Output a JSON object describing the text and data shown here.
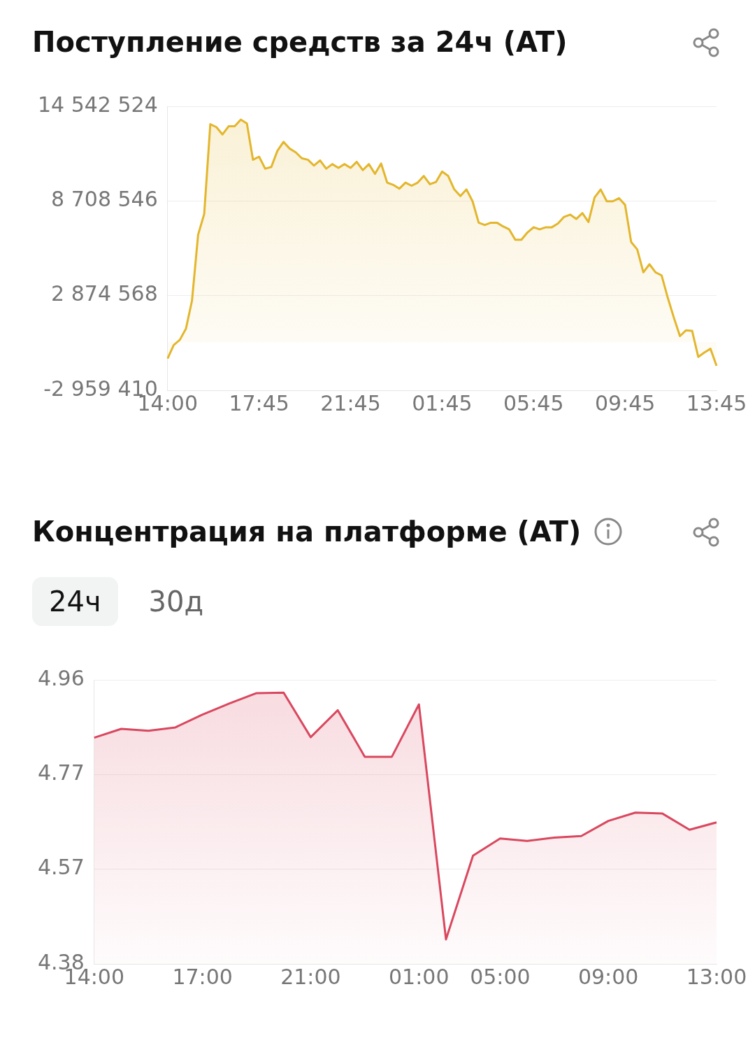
{
  "chart_data": [
    {
      "type": "area",
      "title": "Поступление средств за 24ч (AT)",
      "color": "#e3b62c",
      "grid": "y",
      "marker": "none",
      "line_style": "solid",
      "categories": [
        "14:00",
        null,
        null,
        null,
        null,
        null,
        null,
        null,
        null,
        null,
        null,
        null,
        null,
        null,
        null,
        "17:45",
        null,
        null,
        null,
        null,
        null,
        null,
        null,
        null,
        null,
        null,
        null,
        null,
        null,
        null,
        "21:45",
        null,
        null,
        null,
        null,
        null,
        null,
        null,
        null,
        null,
        null,
        null,
        null,
        null,
        null,
        "01:45",
        null,
        null,
        null,
        null,
        null,
        null,
        null,
        null,
        null,
        null,
        null,
        null,
        null,
        null,
        "05:45",
        null,
        null,
        null,
        null,
        null,
        null,
        null,
        null,
        null,
        null,
        null,
        null,
        null,
        null,
        "09:45",
        null,
        null,
        null,
        null,
        null,
        null,
        null,
        null,
        null,
        null,
        null,
        null,
        null,
        null,
        "13:45"
      ],
      "ylim": [
        -2959410,
        14542524
      ],
      "yticks": [
        {
          "value": -2959410,
          "label": "-2 959 410"
        },
        {
          "value": 2874568,
          "label": "2 874 568"
        },
        {
          "value": 8708546,
          "label": "8 708 546"
        },
        {
          "value": 14542524,
          "label": "14 542 524"
        }
      ],
      "values": [
        -1000000,
        -170000,
        150000,
        830000,
        2570000,
        6630000,
        7910000,
        13440000,
        13260000,
        12810000,
        13310000,
        13310000,
        13720000,
        13490000,
        11250000,
        11440000,
        10700000,
        10800000,
        11800000,
        12350000,
        11940000,
        11710000,
        11340000,
        11250000,
        10890000,
        11210000,
        10700000,
        10980000,
        10750000,
        10980000,
        10750000,
        11120000,
        10610000,
        10980000,
        10380000,
        11020000,
        9840000,
        9700000,
        9470000,
        9840000,
        9650000,
        9840000,
        10250000,
        9740000,
        9880000,
        10520000,
        10250000,
        9420000,
        9010000,
        9420000,
        8690000,
        7370000,
        7230000,
        7370000,
        7370000,
        7140000,
        6960000,
        6320000,
        6320000,
        6770000,
        7090000,
        6960000,
        7090000,
        7090000,
        7320000,
        7730000,
        7870000,
        7600000,
        7960000,
        7410000,
        8920000,
        9420000,
        8690000,
        8690000,
        8880000,
        8470000,
        6180000,
        5720000,
        4310000,
        4810000,
        4310000,
        4120000,
        2750000,
        1520000,
        380000,
        740000,
        700000,
        -900000,
        -630000,
        -400000,
        -1450000
      ]
    },
    {
      "type": "area",
      "title": "Концентрация на платформе (AT)",
      "color": "#d9485f",
      "grid": "y",
      "marker": "none",
      "line_style": "solid",
      "annotations": [
        "24ч",
        "30д"
      ],
      "categories": [
        "14:00",
        null,
        null,
        null,
        "17:00",
        null,
        null,
        null,
        "21:00",
        null,
        null,
        null,
        "01:00",
        null,
        null,
        "05:00",
        null,
        null,
        null,
        "09:00",
        null,
        null,
        null,
        "13:00"
      ],
      "ylim": [
        4.38,
        4.96
      ],
      "yticks": [
        4.38,
        {
          "value": 4.5733,
          "label": "4.57"
        },
        {
          "value": 4.7667,
          "label": "4.77"
        },
        4.96
      ],
      "values": [
        4.842,
        4.86,
        4.856,
        4.863,
        4.889,
        4.912,
        4.933,
        4.934,
        4.843,
        4.898,
        4.803,
        4.803,
        4.91,
        4.43,
        4.601,
        4.636,
        4.631,
        4.638,
        4.641,
        4.672,
        4.689,
        4.687,
        4.654,
        4.669
      ]
    }
  ]
}
